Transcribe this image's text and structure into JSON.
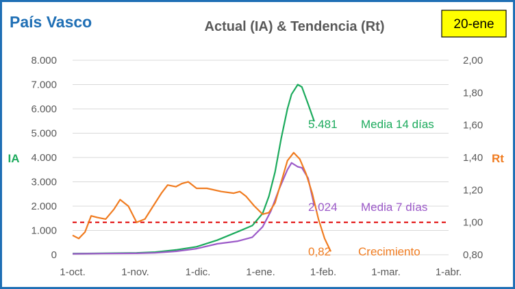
{
  "header": {
    "region": "País Vasco",
    "title": "Actual (IA) & Tendencia (Rt)",
    "date_badge": "20-ene"
  },
  "colors": {
    "region_title": "#1F6FB5",
    "title": "#595959",
    "badge_fill": "#FFFF00",
    "frame": "#1F6FB5",
    "grid": "#D9D9D9",
    "ia14": "#1BAA5C",
    "ia7": "#9B59C8",
    "rt": "#F07B1F",
    "threshold": "#E00000",
    "axis_text": "#595959"
  },
  "chart_data": {
    "type": "line",
    "x_ticks": [
      "1-oct.",
      "1-nov.",
      "1-dic.",
      "1-ene.",
      "1-feb.",
      "1-mar.",
      "1-abr."
    ],
    "y_left": {
      "label": "IA",
      "range": [
        0,
        8000
      ],
      "ticks": [
        "0",
        "1.000",
        "2.000",
        "3.000",
        "4.000",
        "5.000",
        "6.000",
        "7.000",
        "8.000"
      ]
    },
    "y_right": {
      "label": "Rt",
      "range": [
        0.8,
        2.0
      ],
      "ticks": [
        "0,80",
        "1,00",
        "1,20",
        "1,40",
        "1,60",
        "1,80",
        "2,00"
      ]
    },
    "grid": "horizontal",
    "threshold": {
      "axis": "right",
      "value": 1.0,
      "style": "dashed"
    },
    "series": [
      {
        "name": "Media 14 días",
        "axis": "left",
        "last_label": "5.481",
        "points": [
          [
            "2020-10-01",
            50
          ],
          [
            "2020-10-15",
            60
          ],
          [
            "2020-11-01",
            80
          ],
          [
            "2020-11-10",
            110
          ],
          [
            "2020-11-20",
            200
          ],
          [
            "2020-11-30",
            330
          ],
          [
            "2020-12-10",
            600
          ],
          [
            "2020-12-20",
            950
          ],
          [
            "2020-12-27",
            1200
          ],
          [
            "2021-01-01",
            1700
          ],
          [
            "2021-01-04",
            2400
          ],
          [
            "2021-01-07",
            3400
          ],
          [
            "2021-01-10",
            4800
          ],
          [
            "2021-01-13",
            6000
          ],
          [
            "2021-01-15",
            6600
          ],
          [
            "2021-01-18",
            7000
          ],
          [
            "2021-01-20",
            6900
          ],
          [
            "2021-01-23",
            6200
          ],
          [
            "2021-01-26",
            5481
          ]
        ]
      },
      {
        "name": "Media 7 días",
        "axis": "left",
        "last_label": "2.024",
        "points": [
          [
            "2020-10-01",
            40
          ],
          [
            "2020-10-15",
            50
          ],
          [
            "2020-11-01",
            60
          ],
          [
            "2020-11-10",
            80
          ],
          [
            "2020-11-20",
            140
          ],
          [
            "2020-11-30",
            250
          ],
          [
            "2020-12-10",
            450
          ],
          [
            "2020-12-20",
            560
          ],
          [
            "2020-12-27",
            720
          ],
          [
            "2021-01-01",
            1150
          ],
          [
            "2021-01-05",
            1800
          ],
          [
            "2021-01-09",
            2700
          ],
          [
            "2021-01-13",
            3500
          ],
          [
            "2021-01-15",
            3780
          ],
          [
            "2021-01-18",
            3620
          ],
          [
            "2021-01-20",
            3580
          ],
          [
            "2021-01-23",
            3150
          ],
          [
            "2021-01-26",
            2024
          ]
        ]
      },
      {
        "name": "Crecimiento",
        "axis": "right",
        "last_label": "0,82",
        "points": [
          [
            "2020-10-01",
            0.92
          ],
          [
            "2020-10-04",
            0.9
          ],
          [
            "2020-10-07",
            0.94
          ],
          [
            "2020-10-10",
            1.04
          ],
          [
            "2020-10-13",
            1.03
          ],
          [
            "2020-10-17",
            1.02
          ],
          [
            "2020-10-21",
            1.08
          ],
          [
            "2020-10-24",
            1.14
          ],
          [
            "2020-10-28",
            1.1
          ],
          [
            "2020-11-01",
            1.0
          ],
          [
            "2020-11-05",
            1.02
          ],
          [
            "2020-11-09",
            1.1
          ],
          [
            "2020-11-13",
            1.18
          ],
          [
            "2020-11-16",
            1.23
          ],
          [
            "2020-11-20",
            1.22
          ],
          [
            "2020-11-23",
            1.24
          ],
          [
            "2020-11-26",
            1.25
          ],
          [
            "2020-11-30",
            1.21
          ],
          [
            "2020-12-05",
            1.21
          ],
          [
            "2020-12-12",
            1.19
          ],
          [
            "2020-12-18",
            1.18
          ],
          [
            "2020-12-21",
            1.19
          ],
          [
            "2020-12-24",
            1.16
          ],
          [
            "2020-12-28",
            1.1
          ],
          [
            "2021-01-01",
            1.05
          ],
          [
            "2021-01-04",
            1.06
          ],
          [
            "2021-01-07",
            1.12
          ],
          [
            "2021-01-10",
            1.25
          ],
          [
            "2021-01-13",
            1.38
          ],
          [
            "2021-01-16",
            1.43
          ],
          [
            "2021-01-19",
            1.39
          ],
          [
            "2021-01-22",
            1.3
          ],
          [
            "2021-01-25",
            1.18
          ],
          [
            "2021-01-28",
            1.02
          ],
          [
            "2021-01-31",
            0.9
          ],
          [
            "2021-02-03",
            0.82
          ]
        ]
      }
    ]
  }
}
